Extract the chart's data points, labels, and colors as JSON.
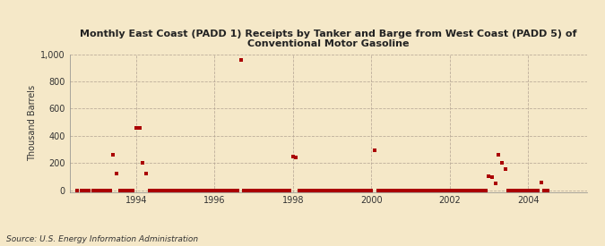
{
  "title": "Monthly East Coast (PADD 1) Receipts by Tanker and Barge from West Coast (PADD 5) of\nConventional Motor Gasoline",
  "ylabel": "Thousand Barrels",
  "source": "Source: U.S. Energy Information Administration",
  "background_color": "#f5e8c8",
  "plot_bg_color": "#f5e8c8",
  "marker_color": "#aa0000",
  "marker_size": 6,
  "ylim": [
    -10,
    1000
  ],
  "yticks": [
    0,
    200,
    400,
    600,
    800,
    1000
  ],
  "xlim": [
    1992.3,
    2005.5
  ],
  "xticks": [
    1994,
    1996,
    1998,
    2000,
    2002,
    2004
  ],
  "data_points": [
    [
      1992.5,
      0
    ],
    [
      1992.6,
      0
    ],
    [
      1992.7,
      0
    ],
    [
      1992.8,
      0
    ],
    [
      1992.9,
      0
    ],
    [
      1993.0,
      0
    ],
    [
      1993.083,
      0
    ],
    [
      1993.167,
      0
    ],
    [
      1993.25,
      0
    ],
    [
      1993.333,
      0
    ],
    [
      1993.417,
      265
    ],
    [
      1993.5,
      125
    ],
    [
      1993.583,
      0
    ],
    [
      1993.667,
      0
    ],
    [
      1993.75,
      0
    ],
    [
      1993.833,
      0
    ],
    [
      1993.917,
      0
    ],
    [
      1994.0,
      460
    ],
    [
      1994.083,
      460
    ],
    [
      1994.167,
      200
    ],
    [
      1994.25,
      125
    ],
    [
      1994.333,
      0
    ],
    [
      1994.417,
      0
    ],
    [
      1994.5,
      0
    ],
    [
      1994.583,
      0
    ],
    [
      1994.667,
      0
    ],
    [
      1994.75,
      0
    ],
    [
      1994.833,
      0
    ],
    [
      1994.917,
      0
    ],
    [
      1995.0,
      0
    ],
    [
      1995.083,
      0
    ],
    [
      1995.167,
      0
    ],
    [
      1995.25,
      0
    ],
    [
      1995.333,
      0
    ],
    [
      1995.417,
      0
    ],
    [
      1995.5,
      0
    ],
    [
      1995.583,
      0
    ],
    [
      1995.667,
      0
    ],
    [
      1995.75,
      0
    ],
    [
      1995.833,
      0
    ],
    [
      1995.917,
      0
    ],
    [
      1996.0,
      0
    ],
    [
      1996.083,
      0
    ],
    [
      1996.167,
      0
    ],
    [
      1996.25,
      0
    ],
    [
      1996.333,
      0
    ],
    [
      1996.417,
      0
    ],
    [
      1996.5,
      0
    ],
    [
      1996.583,
      0
    ],
    [
      1996.667,
      960
    ],
    [
      1996.75,
      0
    ],
    [
      1996.833,
      0
    ],
    [
      1996.917,
      0
    ],
    [
      1997.0,
      0
    ],
    [
      1997.083,
      0
    ],
    [
      1997.167,
      0
    ],
    [
      1997.25,
      0
    ],
    [
      1997.333,
      0
    ],
    [
      1997.417,
      0
    ],
    [
      1997.5,
      0
    ],
    [
      1997.583,
      0
    ],
    [
      1997.667,
      0
    ],
    [
      1997.75,
      0
    ],
    [
      1997.833,
      0
    ],
    [
      1997.917,
      0
    ],
    [
      1998.0,
      250
    ],
    [
      1998.083,
      245
    ],
    [
      1998.167,
      0
    ],
    [
      1998.25,
      0
    ],
    [
      1998.333,
      0
    ],
    [
      1998.417,
      0
    ],
    [
      1998.5,
      0
    ],
    [
      1998.583,
      0
    ],
    [
      1998.667,
      0
    ],
    [
      1998.75,
      0
    ],
    [
      1998.833,
      0
    ],
    [
      1998.917,
      0
    ],
    [
      1999.0,
      0
    ],
    [
      1999.083,
      0
    ],
    [
      1999.167,
      0
    ],
    [
      1999.25,
      0
    ],
    [
      1999.333,
      0
    ],
    [
      1999.417,
      0
    ],
    [
      1999.5,
      0
    ],
    [
      1999.583,
      0
    ],
    [
      1999.667,
      0
    ],
    [
      1999.75,
      0
    ],
    [
      1999.833,
      0
    ],
    [
      1999.917,
      0
    ],
    [
      2000.0,
      0
    ],
    [
      2000.083,
      295
    ],
    [
      2000.167,
      0
    ],
    [
      2000.25,
      0
    ],
    [
      2000.333,
      0
    ],
    [
      2000.417,
      0
    ],
    [
      2000.5,
      0
    ],
    [
      2000.583,
      0
    ],
    [
      2000.667,
      0
    ],
    [
      2000.75,
      0
    ],
    [
      2000.833,
      0
    ],
    [
      2000.917,
      0
    ],
    [
      2001.0,
      0
    ],
    [
      2001.083,
      0
    ],
    [
      2001.167,
      0
    ],
    [
      2001.25,
      0
    ],
    [
      2001.333,
      0
    ],
    [
      2001.417,
      0
    ],
    [
      2001.5,
      0
    ],
    [
      2001.583,
      0
    ],
    [
      2001.667,
      0
    ],
    [
      2001.75,
      0
    ],
    [
      2001.833,
      0
    ],
    [
      2001.917,
      0
    ],
    [
      2002.0,
      0
    ],
    [
      2002.083,
      0
    ],
    [
      2002.167,
      0
    ],
    [
      2002.25,
      0
    ],
    [
      2002.333,
      0
    ],
    [
      2002.417,
      0
    ],
    [
      2002.5,
      0
    ],
    [
      2002.583,
      0
    ],
    [
      2002.667,
      0
    ],
    [
      2002.75,
      0
    ],
    [
      2002.833,
      0
    ],
    [
      2002.917,
      0
    ],
    [
      2003.0,
      105
    ],
    [
      2003.083,
      100
    ],
    [
      2003.167,
      50
    ],
    [
      2003.25,
      265
    ],
    [
      2003.333,
      200
    ],
    [
      2003.417,
      160
    ],
    [
      2003.5,
      0
    ],
    [
      2003.583,
      0
    ],
    [
      2003.667,
      0
    ],
    [
      2003.75,
      0
    ],
    [
      2003.833,
      0
    ],
    [
      2003.917,
      0
    ],
    [
      2004.0,
      0
    ],
    [
      2004.083,
      0
    ],
    [
      2004.167,
      0
    ],
    [
      2004.25,
      0
    ],
    [
      2004.333,
      60
    ],
    [
      2004.417,
      0
    ],
    [
      2004.5,
      0
    ]
  ]
}
